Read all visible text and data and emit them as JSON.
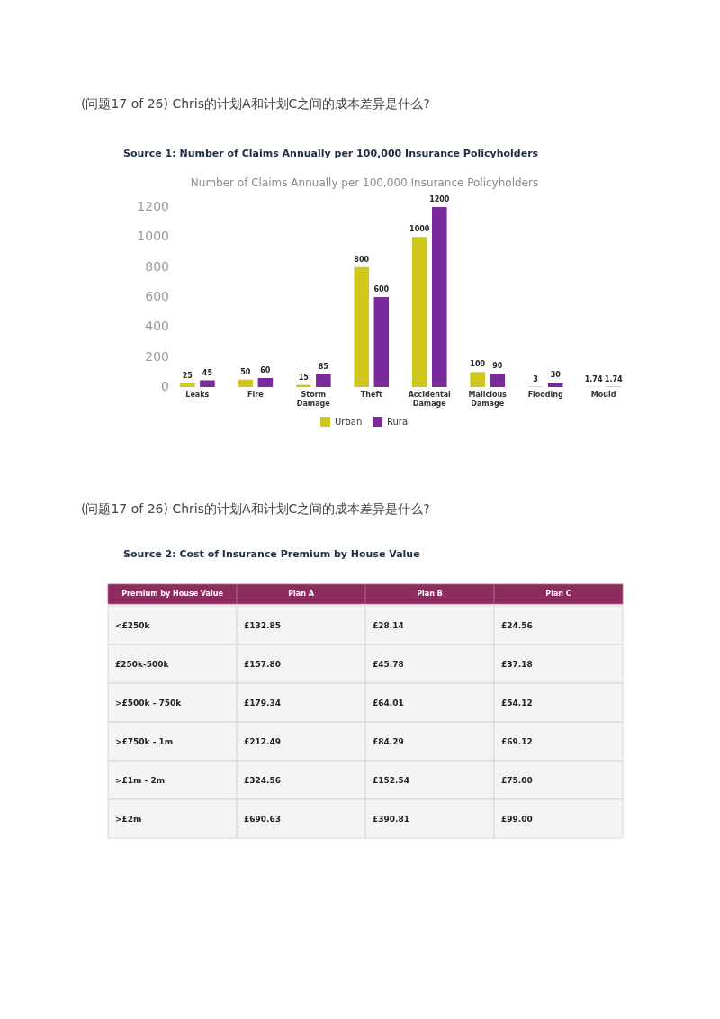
{
  "chart_data": [
    {
      "type": "bar",
      "annotations": [
        "(问题17 of 26) Chris的计划A和计划C之间的成本差异是什么?"
      ],
      "title": "Source 1: Number of Claims Annually per 100,000 Insurance Policyholders",
      "subtitle": "Number of Claims Annually per 100,000 Insurance Policyholders",
      "categories": [
        "Leaks",
        "Fire",
        "Storm Damage",
        "Theft",
        "Accidental Damage",
        "Malicious Damage",
        "Flooding",
        "Mould"
      ],
      "series": [
        {
          "name": "Urban",
          "color": "#cfc61e",
          "values": [
            25,
            50,
            15,
            800,
            1000,
            100,
            3,
            1.74
          ]
        },
        {
          "name": "Rural",
          "color": "#7b2a9d",
          "values": [
            45,
            60,
            85,
            600,
            1200,
            90,
            30,
            1.74
          ]
        }
      ],
      "ylim": [
        0,
        1200
      ],
      "yticks": [
        0,
        200,
        400,
        600,
        800,
        1000,
        1200
      ],
      "grid": false,
      "legend": "bottom",
      "data_labels": true
    },
    {
      "type": "other",
      "annotations": [
        "(问题17 of 26) Chris的计划A和计划C之间的成本差异是什么?"
      ],
      "title": "Source 2: Cost of Insurance Premium by House Value",
      "ylabel": "Premium by House Value",
      "color": "#8e2b5f",
      "categories": [
        "Plan A",
        "Plan B",
        "Plan C"
      ],
      "y_categories": [
        "<£250k",
        "£250k-500k",
        ">£500k - 750k",
        ">£750k - 1m",
        ">£1m - 2m",
        ">£2m"
      ],
      "cell_labels": [
        [
          "£132.85",
          "£28.14",
          "£24.56"
        ],
        [
          "£157.80",
          "£45.78",
          "£37.18"
        ],
        [
          "£179.34",
          "£64.01",
          "£54.12"
        ],
        [
          "£212.49",
          "£84.29",
          "£69.12"
        ],
        [
          "£324.56",
          "£152.54",
          "£75.00"
        ],
        [
          "£690.63",
          "£390.81",
          "£99.00"
        ]
      ]
    }
  ]
}
